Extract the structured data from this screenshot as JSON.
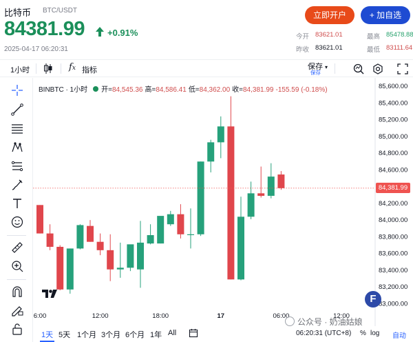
{
  "header": {
    "coin_name": "比特币",
    "pair": "BTC/USDT",
    "price": "84381.99",
    "change": "+0.91%",
    "timestamp": "2025-04-17 06:20:31",
    "btn_open": "立即开户",
    "btn_watch": "+ 加自选",
    "stats": {
      "open_label": "今开",
      "open_value": "83621.01",
      "prev_label": "昨收",
      "prev_value": "83621.01",
      "high_label": "最高",
      "high_value": "85478.88",
      "low_label": "最低",
      "low_value": "83111.64"
    },
    "colors": {
      "up": "#1b8f5a",
      "down": "#cf4c4c",
      "open_btn": "#e84a19",
      "watch_btn": "#1e4bd2"
    }
  },
  "toolbar": {
    "interval": "1小时",
    "indicators_label": "指标",
    "save_label": "保存",
    "save_sub": "保存"
  },
  "left_tools": [
    "crosshair-icon",
    "trendline-icon",
    "fib-icon",
    "pattern-icon",
    "measure-icon",
    "brush-icon",
    "text-icon",
    "emoji-icon",
    "ruler-icon",
    "zoom-in-icon",
    "magnet-icon",
    "lock-draw-icon",
    "lock-icon"
  ],
  "chart": {
    "symbol": "BINBTC · 1小时",
    "legend": {
      "open_k": "开=",
      "open_v": "84,545.36",
      "high_k": "高=",
      "high_v": "84,586.41",
      "low_k": "低=",
      "low_v": "84,362.00",
      "close_k": "收=",
      "close_v": "84,381.99",
      "change_v": "-155.59 (-0.18%)"
    },
    "last_price_tag": "84,381.99"
  },
  "chart_data": {
    "type": "candlestick",
    "y_ticks": [
      "85,600.00",
      "85,400.00",
      "85,200.00",
      "85,000.00",
      "84,800.00",
      "84,600.00",
      "84,200.00",
      "84,000.00",
      "83,800.00",
      "83,600.00",
      "83,400.00",
      "83,200.00",
      "83,000.00"
    ],
    "y_tick_values": [
      85600,
      85400,
      85200,
      85000,
      84800,
      84600,
      84200,
      84000,
      83800,
      83600,
      83400,
      83200,
      83000
    ],
    "ylim": [
      82880,
      85700
    ],
    "x_ticks": [
      "6:00",
      "12:00",
      "18:00",
      "17",
      "06:00",
      "12:00"
    ],
    "x_tick_index": [
      0,
      6,
      12,
      18,
      24,
      30
    ],
    "last_price": 84381.99,
    "candles": [
      {
        "o": 84180,
        "h": 84180,
        "l": 83840,
        "c": 83840
      },
      {
        "o": 83840,
        "h": 83950,
        "l": 83640,
        "c": 83680
      },
      {
        "o": 83680,
        "h": 83700,
        "l": 83160,
        "c": 83170
      },
      {
        "o": 83170,
        "h": 83660,
        "l": 83120,
        "c": 83660
      },
      {
        "o": 83660,
        "h": 83950,
        "l": 83650,
        "c": 83940
      },
      {
        "o": 83930,
        "h": 84000,
        "l": 83740,
        "c": 83740
      },
      {
        "o": 83740,
        "h": 83840,
        "l": 83580,
        "c": 83640
      },
      {
        "o": 83640,
        "h": 83830,
        "l": 83270,
        "c": 83410
      },
      {
        "o": 83410,
        "h": 83730,
        "l": 83310,
        "c": 83430
      },
      {
        "o": 83430,
        "h": 83690,
        "l": 83390,
        "c": 83710
      },
      {
        "o": 83410,
        "h": 83990,
        "l": 83190,
        "c": 83730
      },
      {
        "o": 83720,
        "h": 83950,
        "l": 83710,
        "c": 83820
      },
      {
        "o": 83720,
        "h": 84030,
        "l": 83720,
        "c": 84050
      },
      {
        "o": 83950,
        "h": 84110,
        "l": 83930,
        "c": 84070
      },
      {
        "o": 84070,
        "h": 84190,
        "l": 83780,
        "c": 83830
      },
      {
        "o": 83830,
        "h": 84140,
        "l": 83660,
        "c": 83830
      },
      {
        "o": 83830,
        "h": 84700,
        "l": 83810,
        "c": 84700
      },
      {
        "o": 84700,
        "h": 84960,
        "l": 84570,
        "c": 84930
      },
      {
        "o": 84930,
        "h": 85240,
        "l": 84740,
        "c": 85120
      },
      {
        "o": 85120,
        "h": 85480,
        "l": 83290,
        "c": 83290
      },
      {
        "o": 83290,
        "h": 84280,
        "l": 83280,
        "c": 84040
      },
      {
        "o": 84040,
        "h": 84460,
        "l": 84010,
        "c": 84320
      },
      {
        "o": 84320,
        "h": 84640,
        "l": 84270,
        "c": 84290
      },
      {
        "o": 84290,
        "h": 84680,
        "l": 84260,
        "c": 84520
      },
      {
        "o": 84545,
        "h": 84586,
        "l": 84362,
        "c": 84382
      }
    ]
  },
  "bottom": {
    "ranges": [
      "1天",
      "5天",
      "1个月",
      "3个月",
      "6个月",
      "1年",
      "All"
    ],
    "active_range": "1天",
    "time": "06:20:31 (UTC+8)",
    "pct": "%",
    "log": "log",
    "auto": "自动"
  },
  "watermark": "公众号 · 奶油姑娘"
}
